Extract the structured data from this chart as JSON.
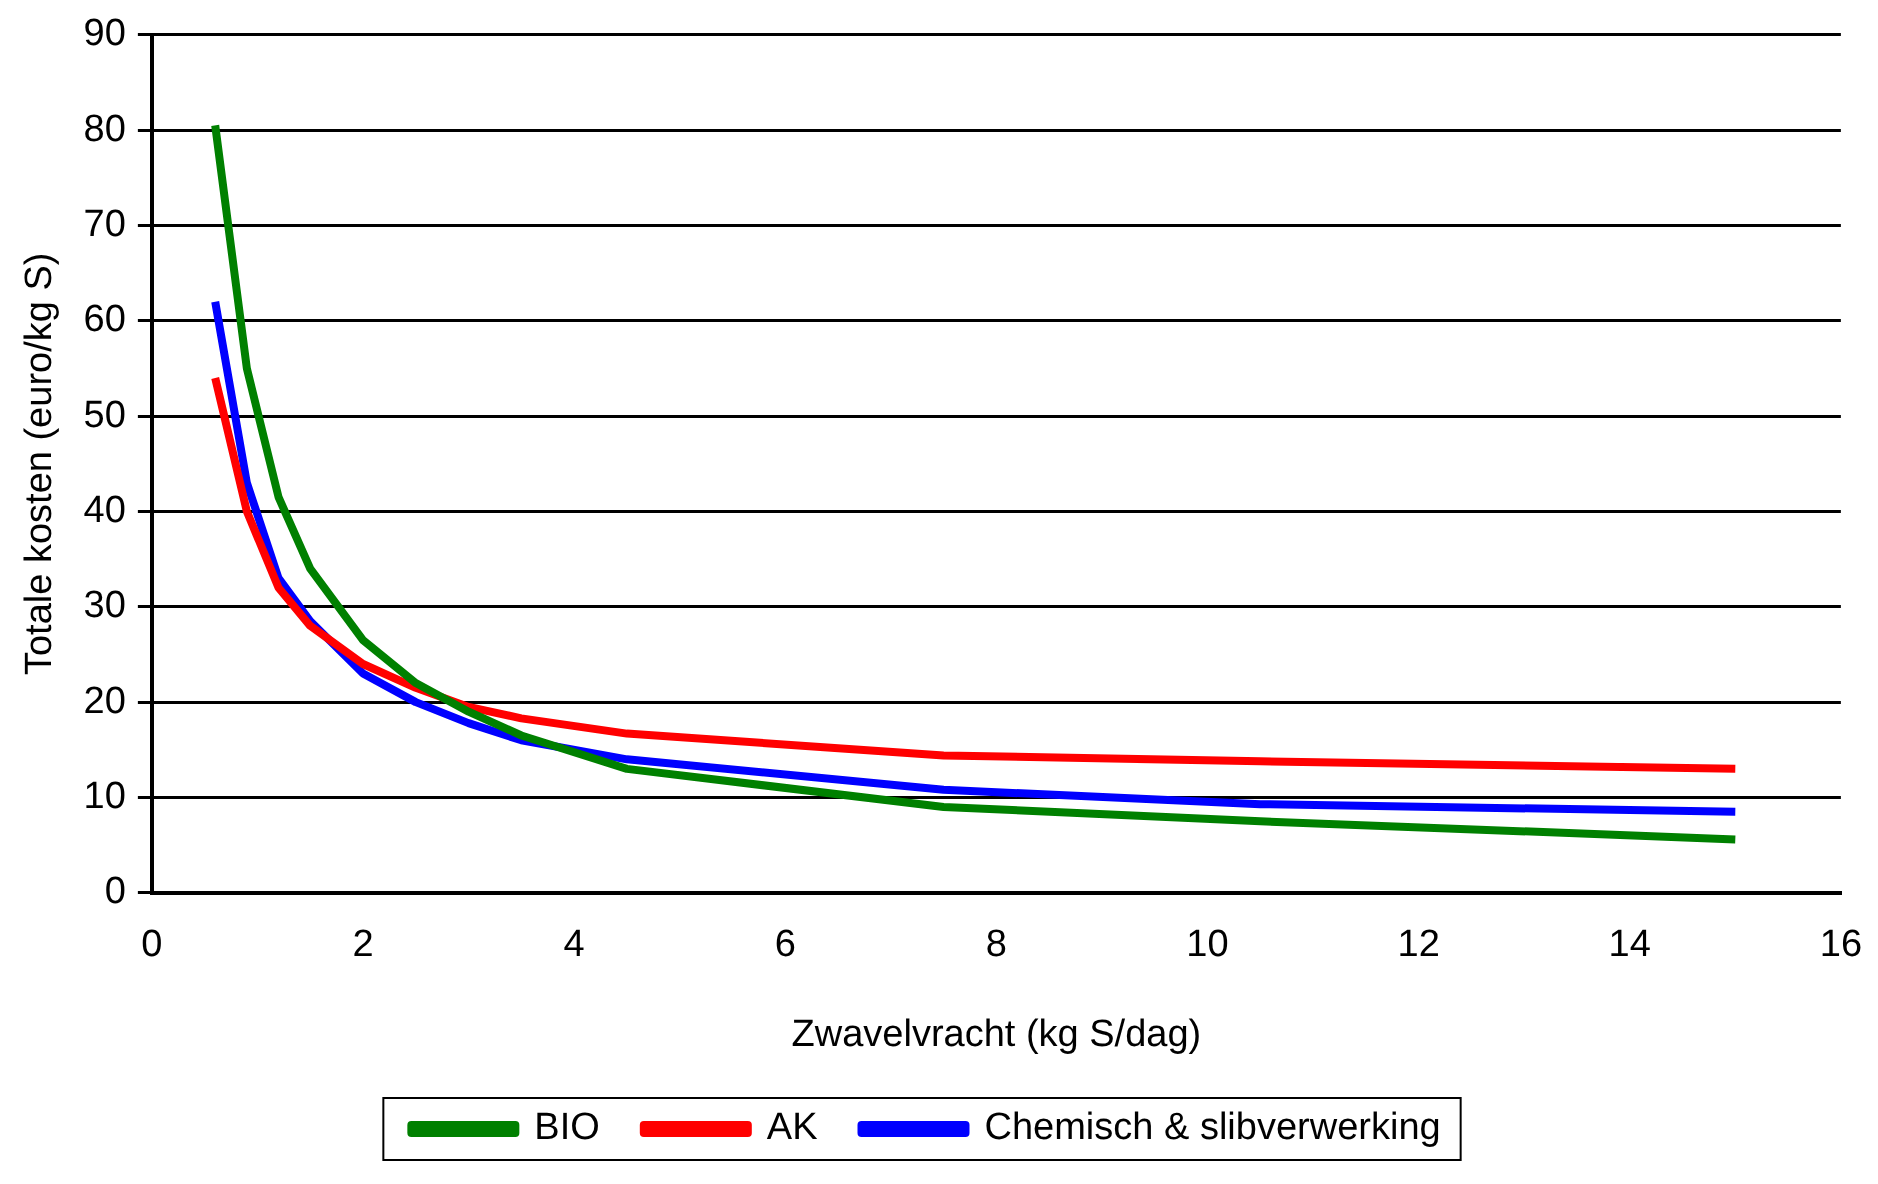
{
  "chart_data": {
    "type": "line",
    "xlabel": "Zwavelvracht (kg S/dag)",
    "ylabel": "Totale kosten (euro/kg S)",
    "x": [
      0.6,
      0.9,
      1.2,
      1.5,
      2,
      2.5,
      3,
      3.5,
      4.5,
      7.5,
      10.5,
      15
    ],
    "series": [
      {
        "name": "BIO",
        "color": "#008000",
        "values": [
          80.5,
          55,
          41.5,
          34,
          26.5,
          22,
          19,
          16.5,
          13,
          9,
          7.5,
          5.6
        ]
      },
      {
        "name": "AK",
        "color": "#ff0000",
        "values": [
          54,
          40,
          32,
          28,
          24,
          21.5,
          19.5,
          18.3,
          16.7,
          14.4,
          13.8,
          13
        ]
      },
      {
        "name": "Chemisch & slibverwerking",
        "color": "#0000ff",
        "values": [
          62,
          43,
          33,
          28.5,
          23,
          20,
          17.8,
          16,
          14,
          10.8,
          9.3,
          8.5
        ]
      }
    ],
    "xlim": [
      0,
      16
    ],
    "xticks": [
      0,
      2,
      4,
      6,
      8,
      10,
      12,
      14,
      16
    ],
    "ylim": [
      0,
      90
    ],
    "yticks": [
      0,
      10,
      20,
      30,
      40,
      50,
      60,
      70,
      80,
      90
    ],
    "grid": "y",
    "legend": "bottom",
    "marker": "none",
    "line_style": "solid"
  }
}
